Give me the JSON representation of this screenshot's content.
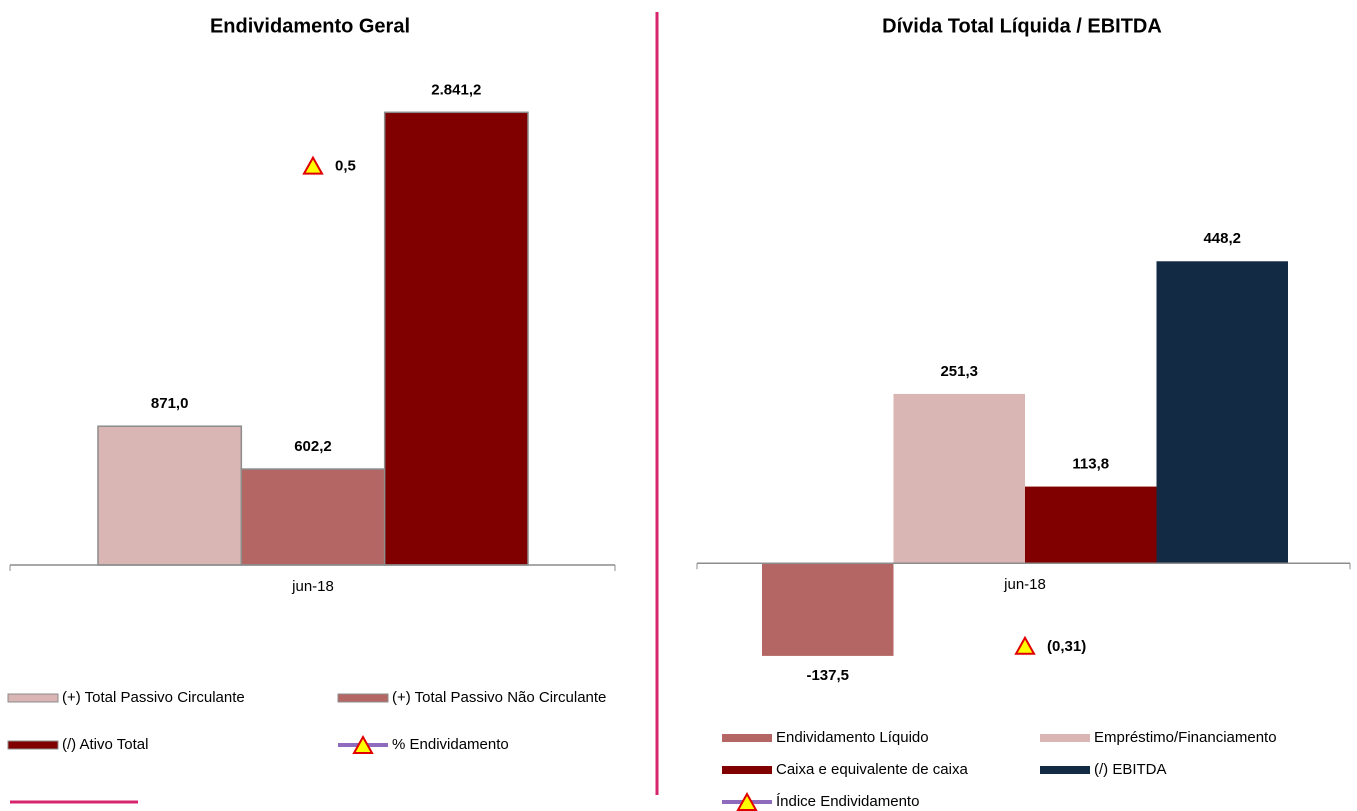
{
  "chart_data": [
    {
      "type": "bar",
      "title": "Endividamento Geral",
      "categories": [
        "jun-18"
      ],
      "ylim": [
        0,
        3000
      ],
      "y2lim": [
        0,
        0.6
      ],
      "series": [
        {
          "name": "(+) Total Passivo Circulante",
          "color": "#d9b5b3",
          "values": [
            871.0
          ],
          "value_labels": [
            "871,0"
          ]
        },
        {
          "name": "(+) Total Passivo Não Circulante",
          "color": "#b36663",
          "values": [
            602.2
          ],
          "value_labels": [
            "602,2"
          ]
        },
        {
          "name": "(/) Ativo Total",
          "color": "#800000",
          "values": [
            2841.2
          ],
          "value_labels": [
            "2.841,2"
          ]
        },
        {
          "name": "% Endividamento",
          "type": "line",
          "axis": "y2",
          "color": "#8e6bbd",
          "values": [
            0.5
          ],
          "value_labels": [
            "0,5"
          ]
        }
      ]
    },
    {
      "type": "bar",
      "title": "Dívida Total Líquida / EBITDA",
      "categories": [
        "jun-18"
      ],
      "ylim": [
        -200,
        600
      ],
      "y2lim": [
        -0.5,
        1.5
      ],
      "series": [
        {
          "name": "Endividamento Líquido",
          "color": "#b36663",
          "values": [
            -137.5
          ],
          "value_labels": [
            "-137,5"
          ]
        },
        {
          "name": "Empréstimo/Financiamento",
          "color": "#d9b5b3",
          "values": [
            251.3
          ],
          "value_labels": [
            "251,3"
          ]
        },
        {
          "name": "Caixa e equivalente de caixa",
          "color": "#800000",
          "values": [
            113.8
          ],
          "value_labels": [
            "113,8"
          ]
        },
        {
          "name": "(/) EBITDA",
          "color": "#132a45",
          "values": [
            448.2
          ],
          "value_labels": [
            "448,2"
          ]
        },
        {
          "name": "Índice Endividamento",
          "type": "line",
          "axis": "y2",
          "color": "#8e6bbd",
          "values": [
            -0.31
          ],
          "value_labels": [
            "(0,31)"
          ]
        }
      ]
    }
  ]
}
